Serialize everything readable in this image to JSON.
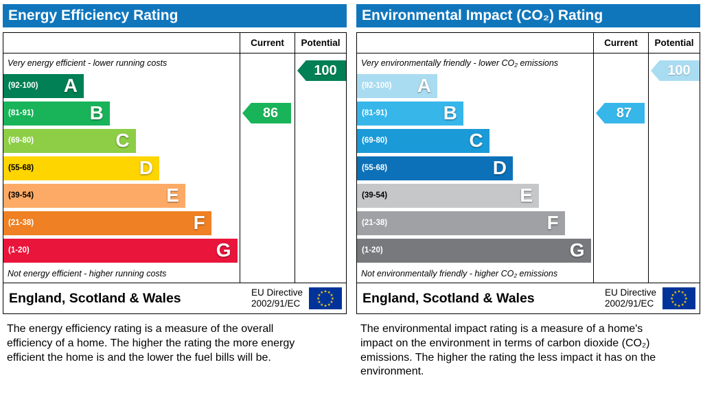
{
  "theme": {
    "header_bg": "#1076bc",
    "header_text": "#ffffff",
    "border": "#000000"
  },
  "panels": [
    {
      "title": "Energy Efficiency Rating",
      "columns": {
        "current": "Current",
        "potential": "Potential"
      },
      "top_caption": "Very energy efficient - lower running costs",
      "bottom_caption": "Not energy efficient - higher running costs",
      "bands": [
        {
          "letter": "A",
          "range": "(92-100)",
          "color": "#008054",
          "range_color": "#ffffff"
        },
        {
          "letter": "B",
          "range": "(81-91)",
          "color": "#19b459",
          "range_color": "#ffffff"
        },
        {
          "letter": "C",
          "range": "(69-80)",
          "color": "#8dce46",
          "range_color": "#ffffff"
        },
        {
          "letter": "D",
          "range": "(55-68)",
          "color": "#ffd500",
          "range_color": "#000000"
        },
        {
          "letter": "E",
          "range": "(39-54)",
          "color": "#fcaa65",
          "range_color": "#000000"
        },
        {
          "letter": "F",
          "range": "(21-38)",
          "color": "#ef8023",
          "range_color": "#ffffff"
        },
        {
          "letter": "G",
          "range": "(1-20)",
          "color": "#e9153b",
          "range_color": "#ffffff"
        }
      ],
      "current": {
        "value": 86,
        "band": "B",
        "color": "#19b459"
      },
      "potential": {
        "value": 100,
        "band": "A",
        "color": "#008054"
      },
      "footer": {
        "region": "England, Scotland & Wales",
        "directive_line1": "EU Directive",
        "directive_line2": "2002/91/EC"
      },
      "description": "The energy efficiency rating is a measure of the overall efficiency of a home. The higher the rating the more energy efficient the home is and the lower the fuel bills will be."
    },
    {
      "title": "Environmental Impact (CO₂) Rating",
      "columns": {
        "current": "Current",
        "potential": "Potential"
      },
      "top_caption": "Very environmentally friendly - lower CO₂ emissions",
      "bottom_caption": "Not environmentally friendly - higher CO₂ emissions",
      "bands": [
        {
          "letter": "A",
          "range": "(92-100)",
          "color": "#aadcf1",
          "range_color": "#ffffff"
        },
        {
          "letter": "B",
          "range": "(81-91)",
          "color": "#37b6ea",
          "range_color": "#ffffff"
        },
        {
          "letter": "C",
          "range": "(69-80)",
          "color": "#1b9ad8",
          "range_color": "#ffffff"
        },
        {
          "letter": "D",
          "range": "(55-68)",
          "color": "#0c71b8",
          "range_color": "#ffffff"
        },
        {
          "letter": "E",
          "range": "(39-54)",
          "color": "#c6c7c9",
          "range_color": "#000000"
        },
        {
          "letter": "F",
          "range": "(21-38)",
          "color": "#9fa1a4",
          "range_color": "#ffffff"
        },
        {
          "letter": "G",
          "range": "(1-20)",
          "color": "#78797c",
          "range_color": "#ffffff"
        }
      ],
      "current": {
        "value": 87,
        "band": "B",
        "color": "#37b6ea"
      },
      "potential": {
        "value": 100,
        "band": "A",
        "color": "#aadcf1"
      },
      "footer": {
        "region": "England, Scotland & Wales",
        "directive_line1": "EU Directive",
        "directive_line2": "2002/91/EC"
      },
      "description": "The environmental impact rating is a measure of a home's impact on the environment in terms of carbon dioxide (CO₂) emissions. The higher the rating the less impact it has on the environment."
    }
  ],
  "chart_data": [
    {
      "type": "bar",
      "title": "Energy Efficiency Rating",
      "categories": [
        "A (92-100)",
        "B (81-91)",
        "C (69-80)",
        "D (55-68)",
        "E (39-54)",
        "F (21-38)",
        "G (1-20)"
      ],
      "series": [
        {
          "name": "Current",
          "values": [
            86
          ],
          "band": "B"
        },
        {
          "name": "Potential",
          "values": [
            100
          ],
          "band": "A"
        }
      ],
      "scale": [
        1,
        100
      ],
      "annotations": [
        "Very energy efficient - lower running costs",
        "Not energy efficient - higher running costs"
      ]
    },
    {
      "type": "bar",
      "title": "Environmental Impact (CO₂) Rating",
      "categories": [
        "A (92-100)",
        "B (81-91)",
        "C (69-80)",
        "D (55-68)",
        "E (39-54)",
        "F (21-38)",
        "G (1-20)"
      ],
      "series": [
        {
          "name": "Current",
          "values": [
            87
          ],
          "band": "B"
        },
        {
          "name": "Potential",
          "values": [
            100
          ],
          "band": "A"
        }
      ],
      "scale": [
        1,
        100
      ],
      "annotations": [
        "Very environmentally friendly - lower CO₂ emissions",
        "Not environmentally friendly - higher CO₂ emissions"
      ]
    }
  ]
}
